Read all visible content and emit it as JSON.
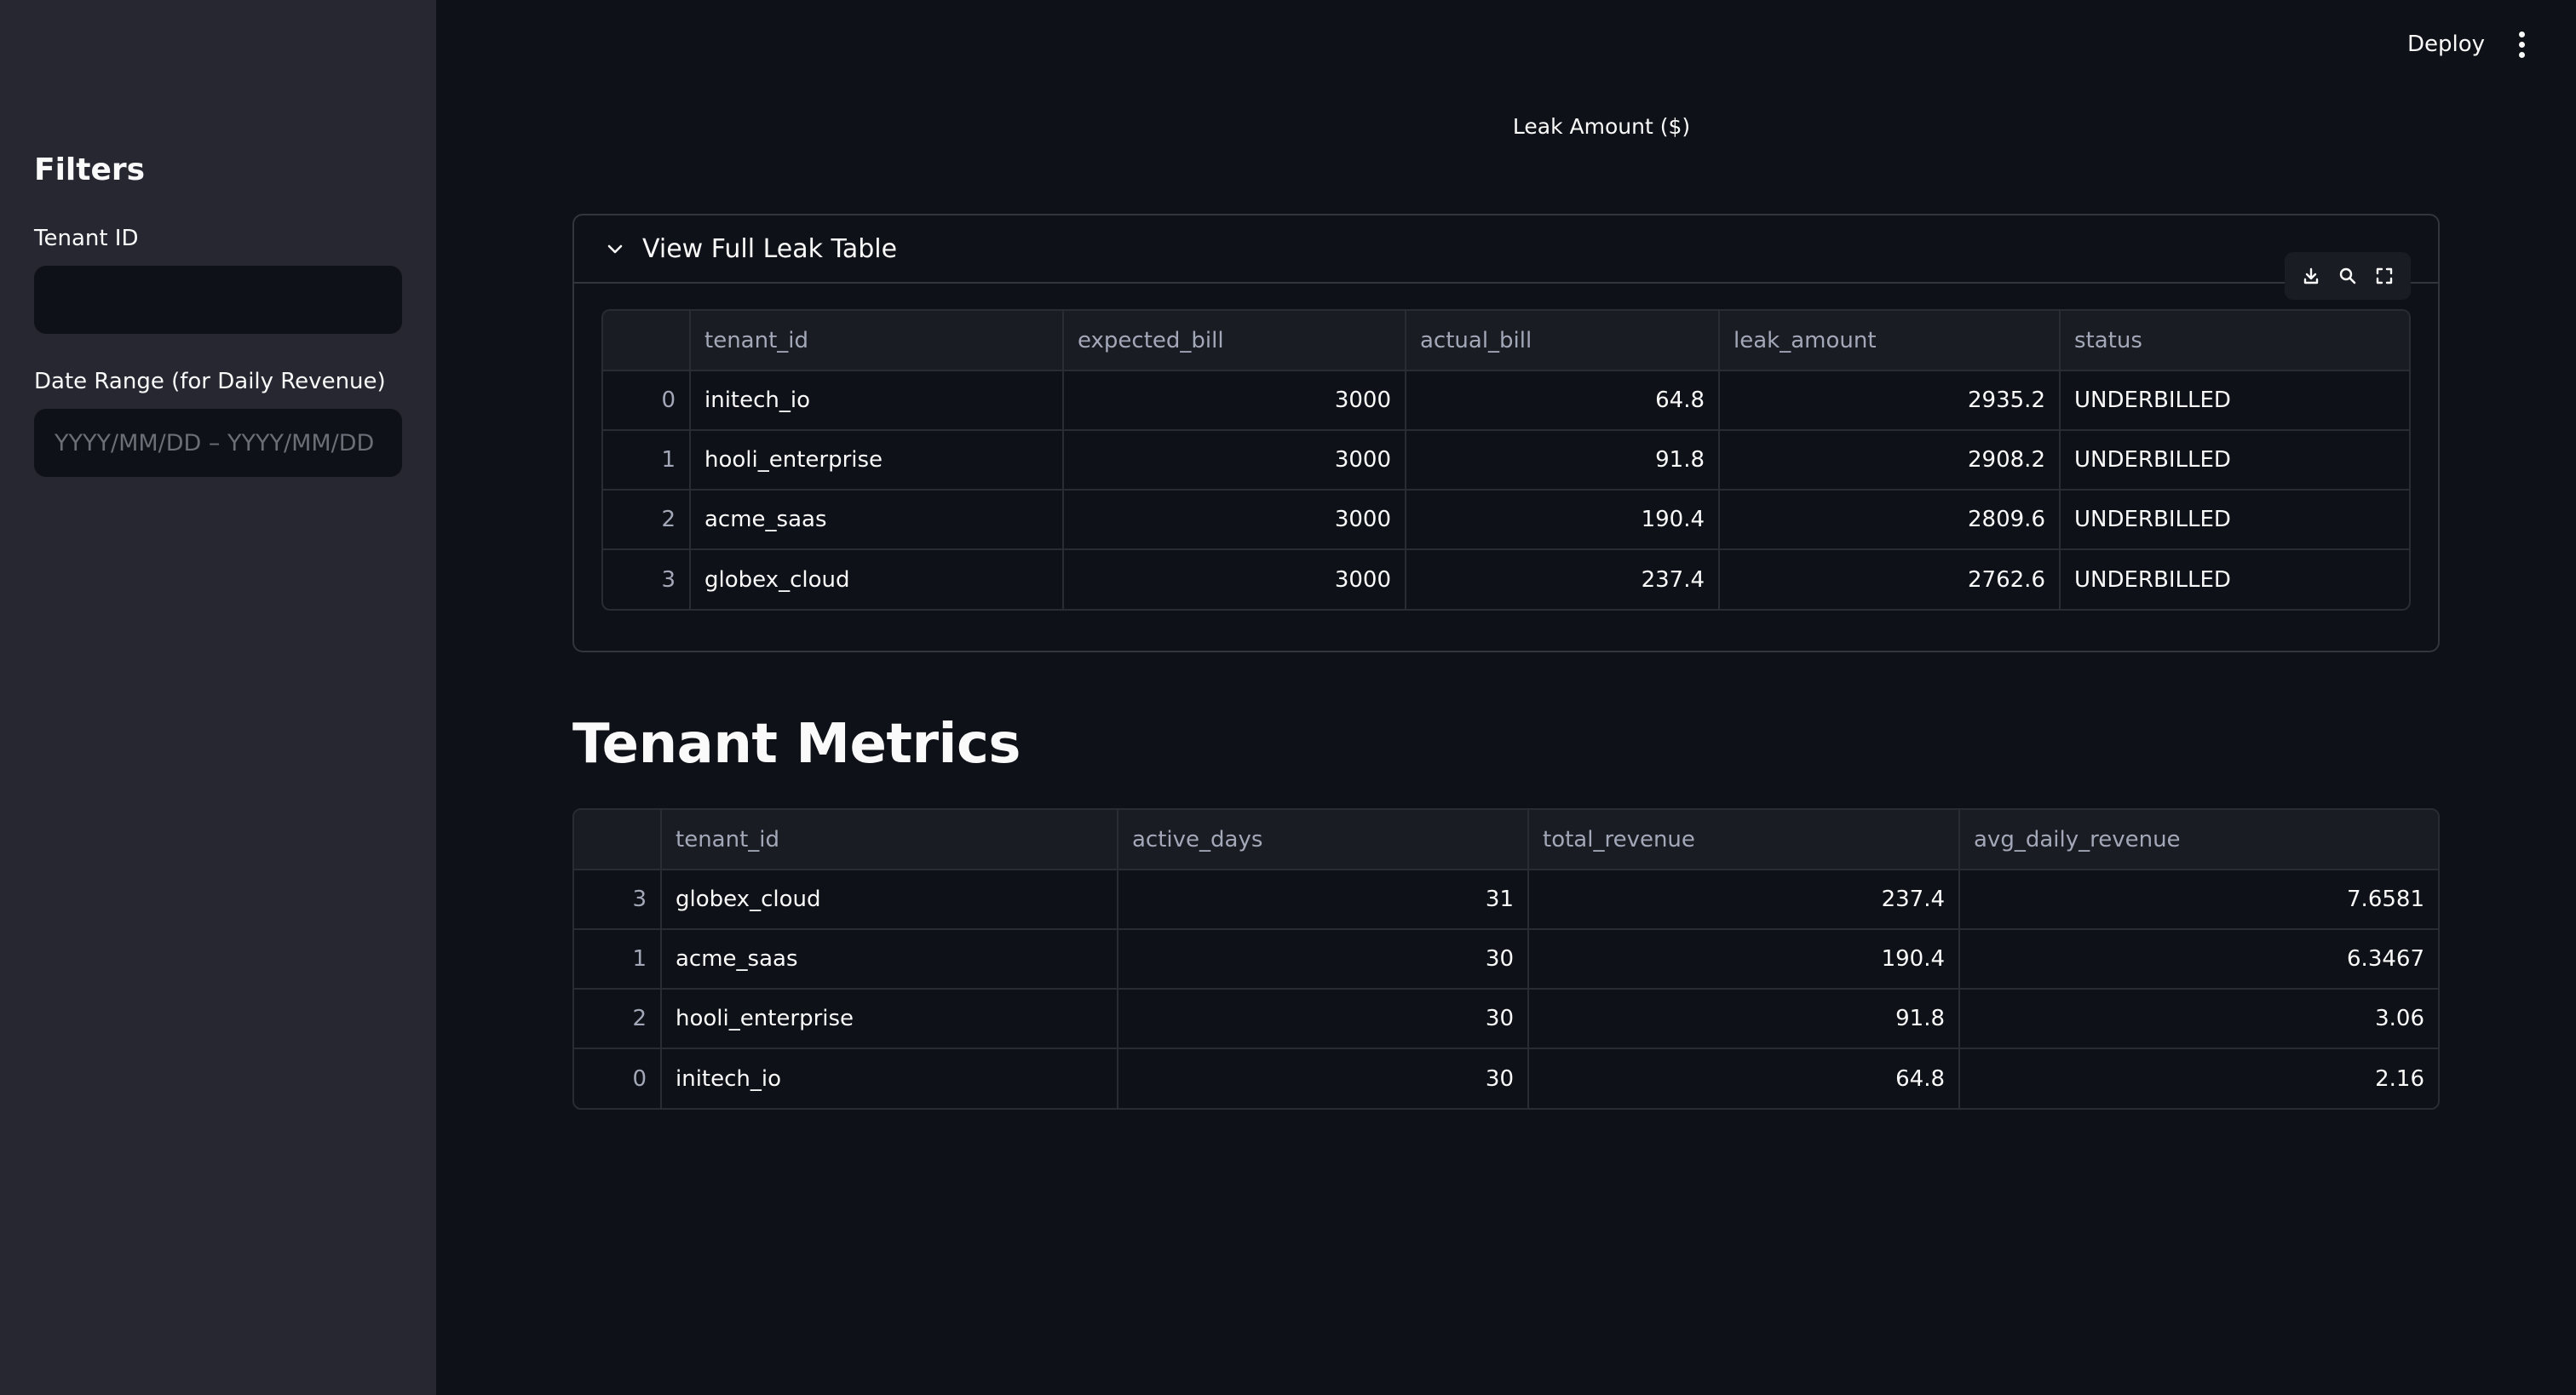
{
  "sidebar": {
    "heading": "Filters",
    "tenant_label": "Tenant ID",
    "tenant_value": "",
    "date_label": "Date Range (for Daily Revenue)",
    "date_placeholder": "YYYY/MM/DD – YYYY/MM/DD"
  },
  "header": {
    "deploy_label": "Deploy",
    "menu_icon": "kebab-menu-icon"
  },
  "chart": {
    "title": "Leak Amount ($)"
  },
  "leak_table": {
    "expander_title": "View Full Leak Table",
    "expanded": true,
    "toolbar_icons": [
      "download-icon",
      "search-icon",
      "fullscreen-icon"
    ],
    "columns": [
      "",
      "tenant_id",
      "expected_bill",
      "actual_bill",
      "leak_amount",
      "status"
    ],
    "rows": [
      {
        "idx": "0",
        "tenant_id": "initech_io",
        "expected_bill": "3000",
        "actual_bill": "64.8",
        "leak_amount": "2935.2",
        "status": "UNDERBILLED"
      },
      {
        "idx": "1",
        "tenant_id": "hooli_enterprise",
        "expected_bill": "3000",
        "actual_bill": "91.8",
        "leak_amount": "2908.2",
        "status": "UNDERBILLED"
      },
      {
        "idx": "2",
        "tenant_id": "acme_saas",
        "expected_bill": "3000",
        "actual_bill": "190.4",
        "leak_amount": "2809.6",
        "status": "UNDERBILLED"
      },
      {
        "idx": "3",
        "tenant_id": "globex_cloud",
        "expected_bill": "3000",
        "actual_bill": "237.4",
        "leak_amount": "2762.6",
        "status": "UNDERBILLED"
      }
    ]
  },
  "metrics": {
    "title": "Tenant Metrics",
    "columns": [
      "",
      "tenant_id",
      "active_days",
      "total_revenue",
      "avg_daily_revenue"
    ],
    "rows": [
      {
        "idx": "3",
        "tenant_id": "globex_cloud",
        "active_days": "31",
        "total_revenue": "237.4",
        "avg_daily_revenue": "7.6581"
      },
      {
        "idx": "1",
        "tenant_id": "acme_saas",
        "active_days": "30",
        "total_revenue": "190.4",
        "avg_daily_revenue": "6.3467"
      },
      {
        "idx": "2",
        "tenant_id": "hooli_enterprise",
        "active_days": "30",
        "total_revenue": "91.8",
        "avg_daily_revenue": "3.06"
      },
      {
        "idx": "0",
        "tenant_id": "initech_io",
        "active_days": "30",
        "total_revenue": "64.8",
        "avg_daily_revenue": "2.16"
      }
    ]
  },
  "colors": {
    "app_bg": "#0e1117",
    "sidebar_bg": "#262730",
    "border": "#2a2c34",
    "muted_text": "#a3a8b8"
  }
}
